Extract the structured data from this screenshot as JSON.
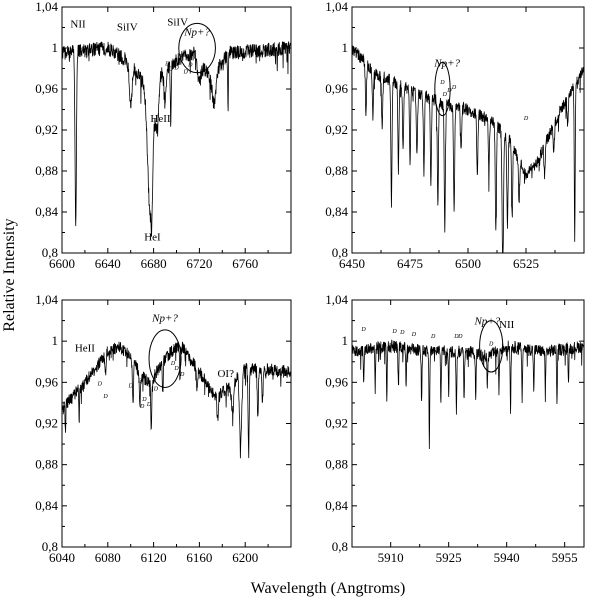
{
  "ylabel": "Relative Intensity",
  "xlabel": "Wavelength (Angtroms)",
  "chart_data": [
    {
      "type": "line",
      "xlim": [
        6600,
        6800
      ],
      "ylim": [
        0.8,
        1.04
      ],
      "xticks": [
        6600,
        6640,
        6680,
        6720,
        6760
      ],
      "xtick_labels": [
        "6600",
        "6640",
        "6680",
        "6720",
        "6760"
      ],
      "yticks": [
        0.8,
        0.84,
        0.88,
        0.92,
        0.96,
        1.0,
        1.04
      ],
      "ytick_labels": [
        "0,8",
        "0,84",
        "0,88",
        "0,92",
        "0,96",
        "1",
        "1,04"
      ],
      "continuum": [
        [
          6600,
          0.995
        ],
        [
          6640,
          1.0
        ],
        [
          6660,
          0.985
        ],
        [
          6672,
          0.965
        ],
        [
          6700,
          0.988
        ],
        [
          6715,
          0.995
        ],
        [
          6730,
          0.97
        ],
        [
          6745,
          0.995
        ],
        [
          6800,
          1.0
        ]
      ],
      "features": [
        {
          "center": 6612,
          "depth": 0.17,
          "width": 0.6
        },
        {
          "center": 6660,
          "depth": 0.04,
          "width": 1.2
        },
        {
          "center": 6677,
          "depth": 0.13,
          "width": 2.2
        },
        {
          "center": 6678.5,
          "depth": 0.04,
          "width": 0.6
        },
        {
          "center": 6683,
          "depth": 0.05,
          "width": 1.5
        },
        {
          "center": 6690,
          "depth": 0.03,
          "width": 1.0
        },
        {
          "center": 6695,
          "depth": 0.06,
          "width": 0.4
        },
        {
          "center": 6720,
          "depth": 0.02,
          "width": 1.5
        },
        {
          "center": 6733,
          "depth": 0.03,
          "width": 1.5
        },
        {
          "center": 6745,
          "depth": 0.06,
          "width": 0.3
        }
      ],
      "noise": 0.007,
      "annotations": [
        {
          "text": "NII",
          "x": 6614,
          "y": 1.02,
          "style": "normal"
        },
        {
          "text": "SiIV",
          "x": 6657,
          "y": 1.017,
          "style": "normal"
        },
        {
          "text": "SiIV",
          "x": 6701,
          "y": 1.022,
          "style": "normal"
        },
        {
          "text": "Np+?",
          "x": 6718,
          "y": 1.012,
          "style": "italic"
        },
        {
          "text": "HeII",
          "x": 6686,
          "y": 0.928,
          "style": "normal"
        },
        {
          "text": "HeI",
          "x": 6679,
          "y": 0.812,
          "style": "normal"
        }
      ],
      "d_marks": [
        [
          6692,
          0.983
        ],
        [
          6695,
          0.978
        ],
        [
          6700,
          0.979
        ],
        [
          6708,
          0.975
        ],
        [
          6722,
          0.975
        ],
        [
          6712,
          0.982
        ]
      ],
      "circle": {
        "x": 6718,
        "y": 1.0,
        "rx_data": 16,
        "ry_data": 0.024
      }
    },
    {
      "type": "line",
      "xlim": [
        6450,
        6550
      ],
      "ylim": [
        0.8,
        1.04
      ],
      "xticks": [
        6450,
        6475,
        6500,
        6525
      ],
      "xtick_labels": [
        "6450",
        "6475",
        "6500",
        "6525"
      ],
      "yticks": [
        0.8,
        0.84,
        0.88,
        0.92,
        0.96,
        1.0,
        1.04
      ],
      "ytick_labels": [
        "0,8",
        "0,84",
        "0,88",
        "0,92",
        "0,96",
        "1",
        "1,04"
      ],
      "continuum": [
        [
          6450,
          1.0
        ],
        [
          6460,
          0.975
        ],
        [
          6470,
          0.965
        ],
        [
          6480,
          0.955
        ],
        [
          6490,
          0.945
        ],
        [
          6500,
          0.94
        ],
        [
          6510,
          0.93
        ],
        [
          6518,
          0.91
        ],
        [
          6525,
          0.875
        ],
        [
          6530,
          0.89
        ],
        [
          6540,
          0.94
        ],
        [
          6550,
          0.98
        ]
      ],
      "features": [
        {
          "center": 6456,
          "depth": 0.05,
          "width": 0.25
        },
        {
          "center": 6459,
          "depth": 0.04,
          "width": 0.25
        },
        {
          "center": 6463,
          "depth": 0.05,
          "width": 0.25
        },
        {
          "center": 6467,
          "depth": 0.12,
          "width": 0.25
        },
        {
          "center": 6470,
          "depth": 0.08,
          "width": 0.25
        },
        {
          "center": 6472,
          "depth": 0.06,
          "width": 0.25
        },
        {
          "center": 6475,
          "depth": 0.07,
          "width": 0.25
        },
        {
          "center": 6478,
          "depth": 0.06,
          "width": 0.25
        },
        {
          "center": 6481,
          "depth": 0.07,
          "width": 0.25
        },
        {
          "center": 6484,
          "depth": 0.08,
          "width": 0.25
        },
        {
          "center": 6487,
          "depth": 0.1,
          "width": 0.25
        },
        {
          "center": 6490,
          "depth": 0.12,
          "width": 0.25
        },
        {
          "center": 6494,
          "depth": 0.1,
          "width": 0.25
        },
        {
          "center": 6497,
          "depth": 0.04,
          "width": 0.25
        },
        {
          "center": 6504,
          "depth": 0.06,
          "width": 0.25
        },
        {
          "center": 6509,
          "depth": 0.05,
          "width": 0.25
        },
        {
          "center": 6512,
          "depth": 0.1,
          "width": 0.25
        },
        {
          "center": 6515,
          "depth": 0.14,
          "width": 0.3
        },
        {
          "center": 6517,
          "depth": 0.09,
          "width": 0.25
        },
        {
          "center": 6519,
          "depth": 0.07,
          "width": 0.25
        },
        {
          "center": 6522,
          "depth": 0.04,
          "width": 0.25
        },
        {
          "center": 6533,
          "depth": 0.03,
          "width": 0.25
        },
        {
          "center": 6537,
          "depth": 0.03,
          "width": 0.25
        },
        {
          "center": 6543,
          "depth": 0.03,
          "width": 0.25
        },
        {
          "center": 6546,
          "depth": 0.15,
          "width": 0.2
        }
      ],
      "noise": 0.006,
      "annotations": [
        {
          "text": "Np+?",
          "x": 6491,
          "y": 0.982,
          "style": "italic"
        }
      ],
      "d_marks": [
        [
          6489,
          0.965
        ],
        [
          6490,
          0.953
        ],
        [
          6494,
          0.96
        ],
        [
          6492,
          0.957
        ],
        [
          6525,
          0.93
        ]
      ],
      "circle": {
        "x": 6489,
        "y": 0.96,
        "rx_data": 3.3,
        "ry_data": 0.026
      }
    },
    {
      "type": "line",
      "xlim": [
        6040,
        6240
      ],
      "ylim": [
        0.8,
        1.04
      ],
      "xticks": [
        6040,
        6080,
        6120,
        6160,
        6200
      ],
      "xtick_labels": [
        "6040",
        "6080",
        "6120",
        "6160",
        "6200"
      ],
      "yticks": [
        0.8,
        0.84,
        0.88,
        0.92,
        0.96,
        1.0,
        1.04
      ],
      "ytick_labels": [
        "0,8",
        "0,84",
        "0,88",
        "0,92",
        "0,96",
        "1",
        "1,04"
      ],
      "continuum": [
        [
          6040,
          0.935
        ],
        [
          6060,
          0.96
        ],
        [
          6080,
          0.99
        ],
        [
          6090,
          0.995
        ],
        [
          6100,
          0.985
        ],
        [
          6110,
          0.965
        ],
        [
          6118,
          0.96
        ],
        [
          6125,
          0.975
        ],
        [
          6135,
          0.99
        ],
        [
          6145,
          0.995
        ],
        [
          6160,
          0.97
        ],
        [
          6175,
          0.945
        ],
        [
          6185,
          0.955
        ],
        [
          6200,
          0.975
        ],
        [
          6240,
          0.97
        ]
      ],
      "features": [
        {
          "center": 6043,
          "depth": 0.03,
          "width": 0.3
        },
        {
          "center": 6055,
          "depth": 0.03,
          "width": 0.3
        },
        {
          "center": 6078,
          "depth": 0.02,
          "width": 0.5
        },
        {
          "center": 6102,
          "depth": 0.04,
          "width": 0.5
        },
        {
          "center": 6108,
          "depth": 0.03,
          "width": 0.5
        },
        {
          "center": 6118,
          "depth": 0.05,
          "width": 0.4
        },
        {
          "center": 6128,
          "depth": 0.03,
          "width": 0.4
        },
        {
          "center": 6143,
          "depth": 0.03,
          "width": 0.4
        },
        {
          "center": 6158,
          "depth": 0.02,
          "width": 0.5
        },
        {
          "center": 6176,
          "depth": 0.02,
          "width": 0.6
        },
        {
          "center": 6189,
          "depth": 0.03,
          "width": 1.0
        },
        {
          "center": 6196,
          "depth": 0.07,
          "width": 1.0
        },
        {
          "center": 6203,
          "depth": 0.08,
          "width": 0.5
        },
        {
          "center": 6211,
          "depth": 0.05,
          "width": 0.5
        },
        {
          "center": 6215,
          "depth": 0.03,
          "width": 0.4
        }
      ],
      "noise": 0.006,
      "annotations": [
        {
          "text": "HeII",
          "x": 6060,
          "y": 0.99,
          "style": "normal"
        },
        {
          "text": "Np+?",
          "x": 6130,
          "y": 1.019,
          "style": "italic"
        },
        {
          "text": "OI?",
          "x": 6183,
          "y": 0.965,
          "style": "normal"
        }
      ],
      "d_marks": [
        [
          6073,
          0.957
        ],
        [
          6078,
          0.945
        ],
        [
          6100,
          0.955
        ],
        [
          6108,
          0.96
        ],
        [
          6112,
          0.942
        ],
        [
          6116,
          0.937
        ],
        [
          6122,
          0.952
        ],
        [
          6110,
          0.935
        ],
        [
          6137,
          0.977
        ],
        [
          6140,
          0.972
        ],
        [
          6145,
          0.966
        ]
      ],
      "circle": {
        "x": 6130,
        "y": 0.983,
        "rx_data": 14,
        "ry_data": 0.028
      }
    },
    {
      "type": "line",
      "xlim": [
        5900,
        5960
      ],
      "ylim": [
        0.8,
        1.04
      ],
      "xticks": [
        5910,
        5925,
        5940,
        5955
      ],
      "xtick_labels": [
        "5910",
        "5925",
        "5940",
        "5955"
      ],
      "yticks": [
        0.8,
        0.84,
        0.88,
        0.92,
        0.96,
        1.0,
        1.04
      ],
      "ytick_labels": [
        "0,8",
        "0,84",
        "0,88",
        "0,92",
        "0,96",
        "1",
        "1,04"
      ],
      "continuum": [
        [
          5900,
          0.99
        ],
        [
          5910,
          0.995
        ],
        [
          5920,
          0.99
        ],
        [
          5930,
          0.99
        ],
        [
          5935,
          0.985
        ],
        [
          5940,
          0.995
        ],
        [
          5950,
          0.99
        ],
        [
          5960,
          0.995
        ]
      ],
      "features": [
        {
          "center": 5903,
          "depth": 0.03,
          "width": 0.1
        },
        {
          "center": 5906,
          "depth": 0.04,
          "width": 0.1
        },
        {
          "center": 5909,
          "depth": 0.05,
          "width": 0.1
        },
        {
          "center": 5912,
          "depth": 0.04,
          "width": 0.1
        },
        {
          "center": 5914,
          "depth": 0.04,
          "width": 0.1
        },
        {
          "center": 5918,
          "depth": 0.05,
          "width": 0.1
        },
        {
          "center": 5920,
          "depth": 0.09,
          "width": 0.1
        },
        {
          "center": 5923,
          "depth": 0.05,
          "width": 0.1
        },
        {
          "center": 5925,
          "depth": 0.04,
          "width": 0.1
        },
        {
          "center": 5927,
          "depth": 0.06,
          "width": 0.1
        },
        {
          "center": 5929,
          "depth": 0.05,
          "width": 0.1
        },
        {
          "center": 5932,
          "depth": 0.04,
          "width": 0.1
        },
        {
          "center": 5935,
          "depth": 0.03,
          "width": 0.1
        },
        {
          "center": 5938,
          "depth": 0.04,
          "width": 0.1
        },
        {
          "center": 5941,
          "depth": 0.06,
          "width": 0.1
        },
        {
          "center": 5944,
          "depth": 0.05,
          "width": 0.1
        },
        {
          "center": 5947,
          "depth": 0.04,
          "width": 0.1
        },
        {
          "center": 5950,
          "depth": 0.04,
          "width": 0.1
        },
        {
          "center": 5953,
          "depth": 0.05,
          "width": 0.1
        },
        {
          "center": 5956,
          "depth": 0.03,
          "width": 0.1
        }
      ],
      "noise": 0.006,
      "annotations": [
        {
          "text": "Np+?",
          "x": 5935,
          "y": 1.016,
          "style": "italic"
        },
        {
          "text": "NII",
          "x": 5940,
          "y": 1.013,
          "style": "normal"
        }
      ],
      "d_marks": [
        [
          5903,
          1.01
        ],
        [
          5911,
          1.008
        ],
        [
          5913,
          1.007
        ],
        [
          5916,
          1.005
        ],
        [
          5921,
          1.003
        ],
        [
          5927,
          1.003
        ],
        [
          5928,
          1.003
        ],
        [
          5936,
          0.996
        ]
      ],
      "circle": {
        "x": 5936,
        "y": 0.995,
        "rx_data": 3.0,
        "ry_data": 0.025
      }
    }
  ]
}
